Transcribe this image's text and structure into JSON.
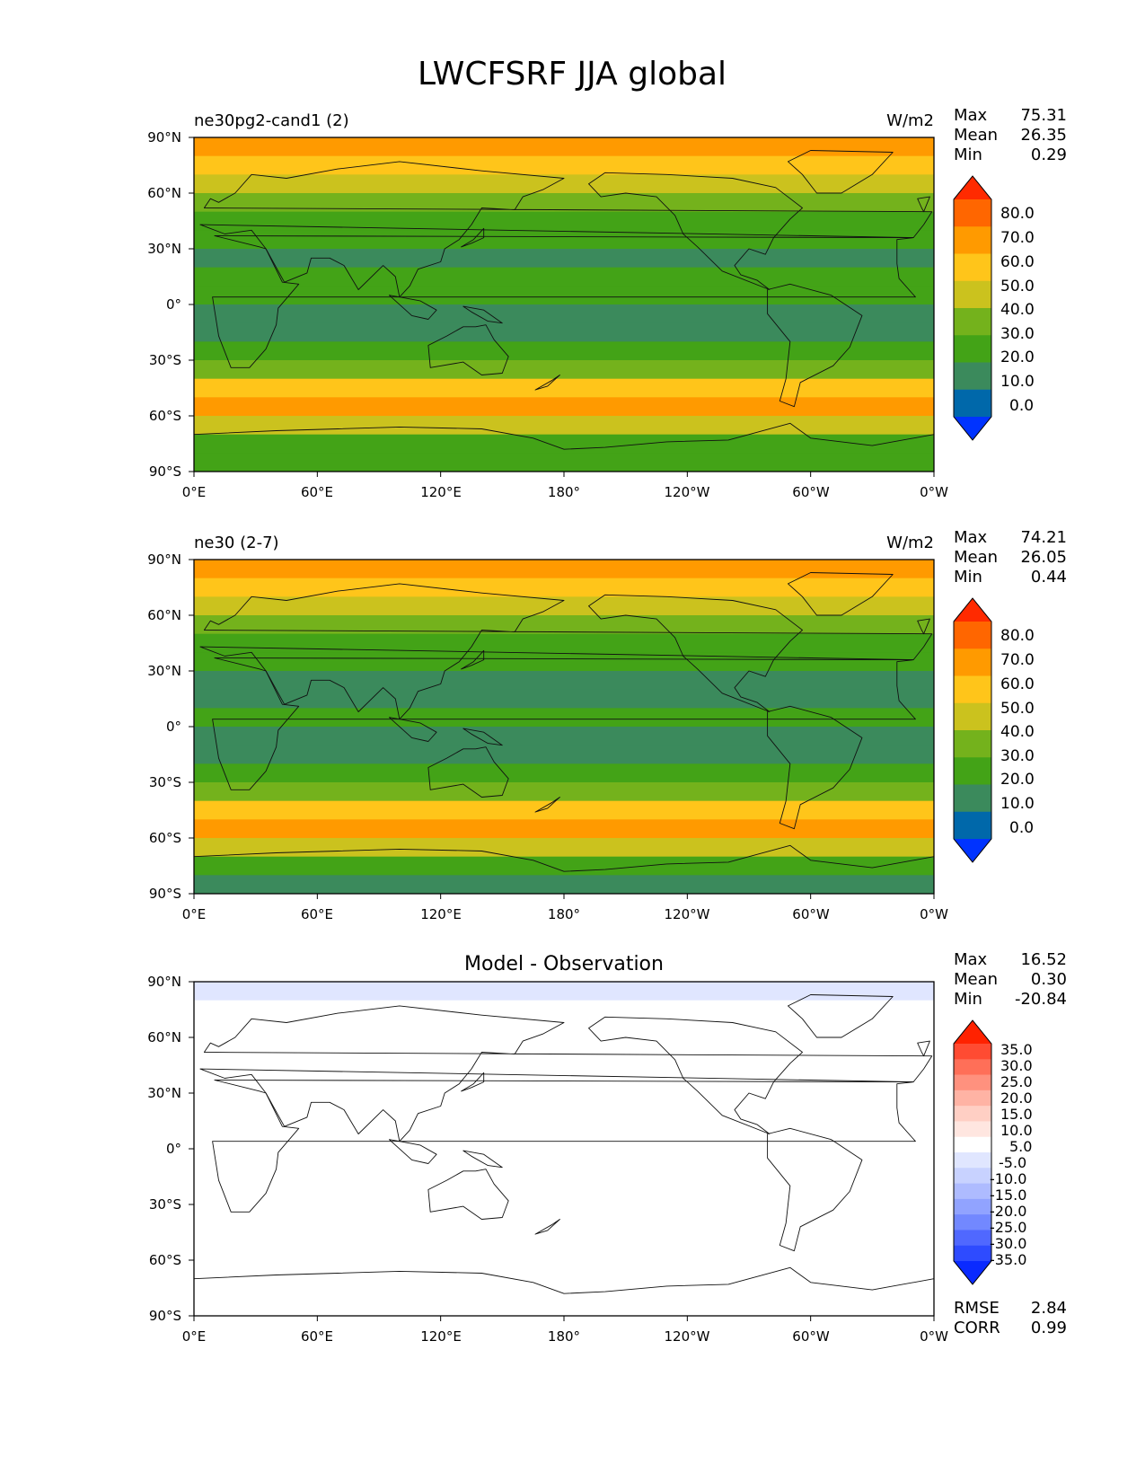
{
  "figure": {
    "title": "LWCFSRF JJA global"
  },
  "chart_data": [
    {
      "type": "heatmap",
      "panel": "test",
      "title": "ne30pg2-cand1 (2)",
      "units": "W/m2",
      "stats": [
        {
          "label": "Max",
          "value": "75.31"
        },
        {
          "label": "Mean",
          "value": "26.35"
        },
        {
          "label": "Min",
          "value": "0.29"
        }
      ],
      "xticks": [
        "0°E",
        "60°E",
        "120°E",
        "180°",
        "120°W",
        "60°W",
        "0°W"
      ],
      "yticks": [
        "90°N",
        "60°N",
        "30°N",
        "0°",
        "30°S",
        "60°S",
        "90°S"
      ],
      "xlim": [
        0,
        360
      ],
      "ylim": [
        -90,
        90
      ],
      "colorbar": {
        "levels": [
          "80.0",
          "70.0",
          "60.0",
          "50.0",
          "40.0",
          "30.0",
          "20.0",
          "10.0",
          "0.0"
        ],
        "colors": [
          "#ff2a00",
          "#ff6600",
          "#ff9a00",
          "#ffc51a",
          "#cbc21e",
          "#74b21c",
          "#43a317",
          "#3b8a5c",
          "#0068aa",
          "#0033ff"
        ]
      },
      "zonal_profile": [
        {
          "lat": 85,
          "value": 65
        },
        {
          "lat": 75,
          "value": 58
        },
        {
          "lat": 65,
          "value": 40
        },
        {
          "lat": 55,
          "value": 30
        },
        {
          "lat": 45,
          "value": 28
        },
        {
          "lat": 35,
          "value": 20
        },
        {
          "lat": 25,
          "value": 10
        },
        {
          "lat": 15,
          "value": 20
        },
        {
          "lat": 5,
          "value": 28
        },
        {
          "lat": -5,
          "value": 15
        },
        {
          "lat": -15,
          "value": 10
        },
        {
          "lat": -25,
          "value": 20
        },
        {
          "lat": -35,
          "value": 30
        },
        {
          "lat": -45,
          "value": 55
        },
        {
          "lat": -55,
          "value": 65
        },
        {
          "lat": -65,
          "value": 48
        },
        {
          "lat": -75,
          "value": 28
        },
        {
          "lat": -85,
          "value": 28
        }
      ]
    },
    {
      "type": "heatmap",
      "panel": "reference",
      "title": "ne30 (2-7)",
      "units": "W/m2",
      "stats": [
        {
          "label": "Max",
          "value": "74.21"
        },
        {
          "label": "Mean",
          "value": "26.05"
        },
        {
          "label": "Min",
          "value": "0.44"
        }
      ],
      "xticks": [
        "0°E",
        "60°E",
        "120°E",
        "180°",
        "120°W",
        "60°W",
        "0°W"
      ],
      "yticks": [
        "90°N",
        "60°N",
        "30°N",
        "0°",
        "30°S",
        "60°S",
        "90°S"
      ],
      "xlim": [
        0,
        360
      ],
      "ylim": [
        -90,
        90
      ],
      "colorbar": {
        "levels": [
          "80.0",
          "70.0",
          "60.0",
          "50.0",
          "40.0",
          "30.0",
          "20.0",
          "10.0",
          "0.0"
        ],
        "colors": [
          "#ff2a00",
          "#ff6600",
          "#ff9a00",
          "#ffc51a",
          "#cbc21e",
          "#74b21c",
          "#43a317",
          "#3b8a5c",
          "#0068aa",
          "#0033ff"
        ]
      },
      "zonal_profile": [
        {
          "lat": 85,
          "value": 68
        },
        {
          "lat": 75,
          "value": 58
        },
        {
          "lat": 65,
          "value": 42
        },
        {
          "lat": 55,
          "value": 32
        },
        {
          "lat": 45,
          "value": 28
        },
        {
          "lat": 35,
          "value": 20
        },
        {
          "lat": 25,
          "value": 10
        },
        {
          "lat": 15,
          "value": 18
        },
        {
          "lat": 5,
          "value": 25
        },
        {
          "lat": -5,
          "value": 15
        },
        {
          "lat": -15,
          "value": 10
        },
        {
          "lat": -25,
          "value": 20
        },
        {
          "lat": -35,
          "value": 30
        },
        {
          "lat": -45,
          "value": 55
        },
        {
          "lat": -55,
          "value": 65
        },
        {
          "lat": -65,
          "value": 48
        },
        {
          "lat": -75,
          "value": 22
        },
        {
          "lat": -85,
          "value": 15
        }
      ]
    },
    {
      "type": "heatmap",
      "panel": "difference",
      "title": "Model - Observation",
      "units": "",
      "stats": [
        {
          "label": "Max",
          "value": "16.52"
        },
        {
          "label": "Mean",
          "value": "0.30"
        },
        {
          "label": "Min",
          "value": "-20.84"
        }
      ],
      "metrics": [
        {
          "label": "RMSE",
          "value": "2.84"
        },
        {
          "label": "CORR",
          "value": "0.99"
        }
      ],
      "xticks": [
        "0°E",
        "60°E",
        "120°E",
        "180°",
        "120°W",
        "60°W",
        "0°W"
      ],
      "yticks": [
        "90°N",
        "60°N",
        "30°N",
        "0°",
        "30°S",
        "60°S",
        "90°S"
      ],
      "xlim": [
        0,
        360
      ],
      "ylim": [
        -90,
        90
      ],
      "colorbar": {
        "levels": [
          "35.0",
          "30.0",
          "25.0",
          "20.0",
          "15.0",
          "10.0",
          "5.0",
          "-5.0",
          "-10.0",
          "-15.0",
          "-20.0",
          "-25.0",
          "-30.0",
          "-35.0"
        ],
        "colors": [
          "#ff2200",
          "#ff4b32",
          "#ff6f58",
          "#ff917e",
          "#ffb3a4",
          "#ffcfc4",
          "#ffe6e0",
          "#ffffff",
          "#e0e6ff",
          "#c8d2ff",
          "#aebbff",
          "#91a3ff",
          "#7288ff",
          "#5068ff",
          "#2e4bff",
          "#0a2aff"
        ]
      },
      "zonal_profile": [
        {
          "lat": 85,
          "value": -6
        },
        {
          "lat": 75,
          "value": -3
        },
        {
          "lat": 65,
          "value": 2
        },
        {
          "lat": 55,
          "value": 0
        },
        {
          "lat": 45,
          "value": 0
        },
        {
          "lat": 35,
          "value": 0
        },
        {
          "lat": 25,
          "value": 0
        },
        {
          "lat": 15,
          "value": 0
        },
        {
          "lat": 5,
          "value": 0
        },
        {
          "lat": -5,
          "value": 0
        },
        {
          "lat": -15,
          "value": 0
        },
        {
          "lat": -25,
          "value": 0
        },
        {
          "lat": -35,
          "value": 0
        },
        {
          "lat": -45,
          "value": 0
        },
        {
          "lat": -55,
          "value": 0
        },
        {
          "lat": -65,
          "value": 0
        },
        {
          "lat": -75,
          "value": 2
        },
        {
          "lat": -85,
          "value": 4
        }
      ]
    }
  ]
}
